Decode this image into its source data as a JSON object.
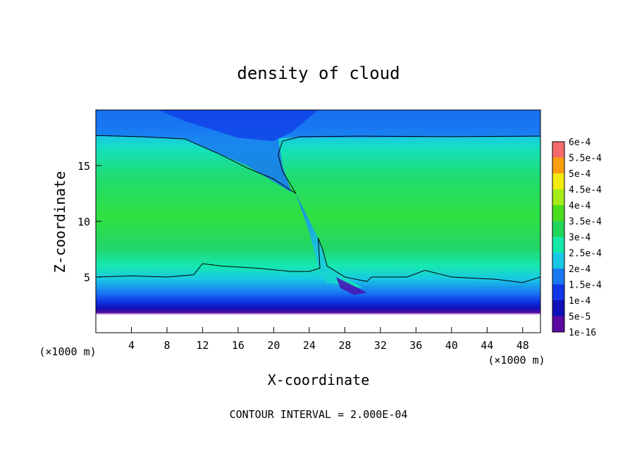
{
  "chart_data": {
    "type": "heatmap",
    "title": "density of cloud",
    "xlabel": "X-coordinate",
    "ylabel": "Z-coordinate",
    "x_unit": "(×1000 m)",
    "footer": "CONTOUR INTERVAL = 2.000E-04",
    "xlim": [
      0,
      50
    ],
    "ylim": [
      0,
      20
    ],
    "x_ticks": [
      4,
      8,
      12,
      16,
      20,
      24,
      28,
      32,
      36,
      40,
      44,
      48
    ],
    "y_ticks": [
      5,
      10,
      15
    ],
    "colorbar": {
      "labels": [
        "1e-16",
        "5e-5",
        "1e-4",
        "1.5e-4",
        "2e-4",
        "2.5e-4",
        "3e-4",
        "3.5e-4",
        "4e-4",
        "4.5e-4",
        "5e-4",
        "5.5e-4",
        "6e-4"
      ],
      "values": [
        1e-16,
        5e-05,
        0.0001,
        0.00015,
        0.0002,
        0.00025,
        0.0003,
        0.00035,
        0.0004,
        0.00045,
        0.0005,
        0.00055,
        0.0006
      ],
      "colors": [
        "#5a0aa0",
        "#1010b8",
        "#1036e6",
        "#1a78f2",
        "#19c8e4",
        "#16e8a8",
        "#22d65a",
        "#4cde1e",
        "#a6ec1a",
        "#f4ec10",
        "#fa9e10",
        "#f43010",
        "#f46a6a"
      ]
    },
    "contour_level": 0.0002,
    "contour_line_color": "#000000",
    "background_region": "zero below ~z=1.5 (white)"
  }
}
